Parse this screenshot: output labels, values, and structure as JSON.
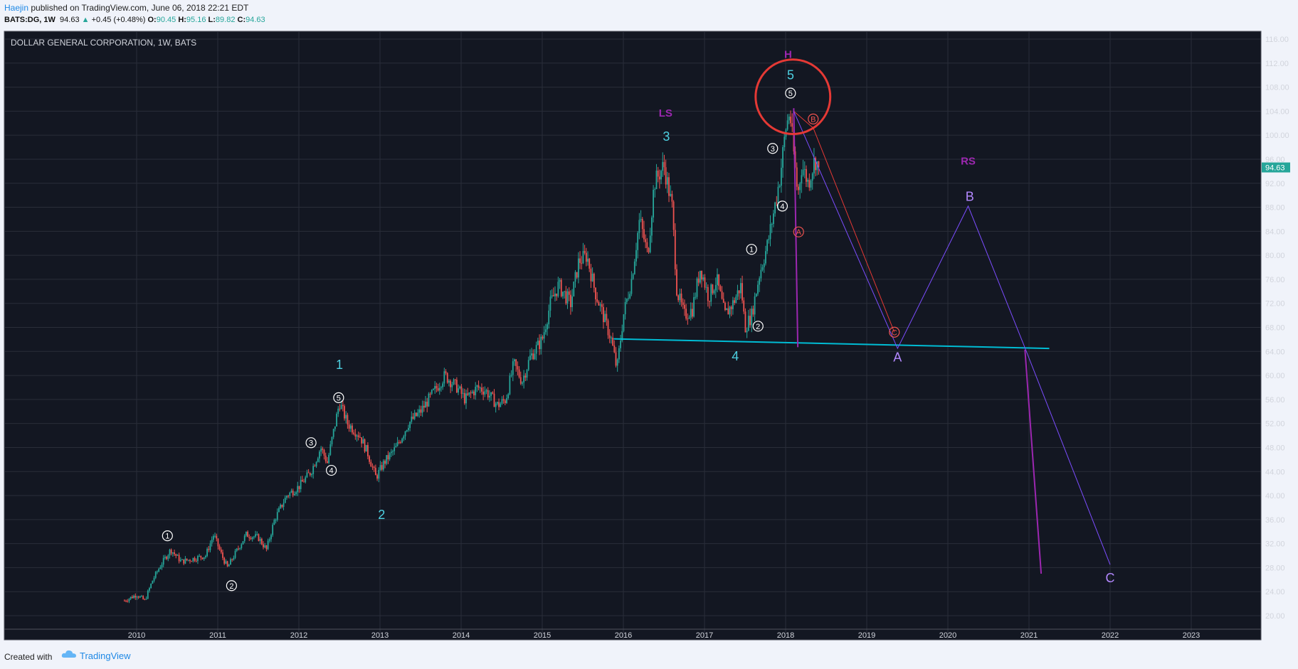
{
  "header": {
    "author": "Haejin",
    "published": " published on TradingView.com, June 06, 2018 22:21 EDT",
    "symbol": "BATS:DG, 1W",
    "last": "94.63",
    "change": "+0.45 (+0.48%)",
    "o_label": "O:",
    "o_val": "90.45",
    "h_label": "H:",
    "h_val": "95.16",
    "l_label": "L:",
    "l_val": "89.82",
    "c_label": "C:",
    "c_val": "94.63"
  },
  "footer": {
    "created": "Created with",
    "brand": "TradingView"
  },
  "colors": {
    "background": "#131722",
    "grid": "#2a2e39",
    "up": "#26a69a",
    "down": "#ef5350",
    "cyan": "#4dd0e1",
    "purple": "#9c27b0",
    "violet": "#7c4dff",
    "red": "#e53935",
    "neckline": "#00bcd4"
  },
  "chart_data": {
    "type": "candlestick",
    "title": "DOLLAR GENERAL CORPORATION, 1W, BATS",
    "ylim": [
      18,
      118
    ],
    "y_ticks": [
      "20.00",
      "24.00",
      "28.00",
      "32.00",
      "36.00",
      "40.00",
      "44.00",
      "48.00",
      "52.00",
      "56.00",
      "60.00",
      "64.00",
      "68.00",
      "72.00",
      "76.00",
      "80.00",
      "84.00",
      "88.00",
      "92.00",
      "96.00",
      "100.00",
      "104.00",
      "108.00",
      "112.00",
      "116.00"
    ],
    "x_ticks": [
      "2010",
      "2011",
      "2012",
      "2013",
      "2014",
      "2015",
      "2016",
      "2017",
      "2018",
      "2019",
      "2020",
      "2021",
      "2022",
      "2023"
    ],
    "last_price": "94.63",
    "price_path": [
      [
        2009.85,
        22.5
      ],
      [
        2010.0,
        23.5
      ],
      [
        2010.1,
        22.5
      ],
      [
        2010.2,
        26
      ],
      [
        2010.3,
        28.5
      ],
      [
        2010.42,
        31
      ],
      [
        2010.55,
        29
      ],
      [
        2010.7,
        29.5
      ],
      [
        2010.85,
        30
      ],
      [
        2010.95,
        33.5
      ],
      [
        2011.05,
        30
      ],
      [
        2011.12,
        28
      ],
      [
        2011.2,
        30
      ],
      [
        2011.35,
        33.5
      ],
      [
        2011.5,
        33
      ],
      [
        2011.6,
        31
      ],
      [
        2011.7,
        36
      ],
      [
        2011.85,
        40
      ],
      [
        2012.0,
        41.5
      ],
      [
        2012.15,
        44
      ],
      [
        2012.27,
        48
      ],
      [
        2012.35,
        45.5
      ],
      [
        2012.5,
        55.5
      ],
      [
        2012.6,
        52
      ],
      [
        2012.75,
        50
      ],
      [
        2012.85,
        47
      ],
      [
        2012.95,
        43
      ],
      [
        2013.05,
        45.5
      ],
      [
        2013.2,
        48
      ],
      [
        2013.35,
        52
      ],
      [
        2013.5,
        54
      ],
      [
        2013.65,
        57
      ],
      [
        2013.8,
        60
      ],
      [
        2013.95,
        58
      ],
      [
        2014.05,
        56
      ],
      [
        2014.2,
        58
      ],
      [
        2014.3,
        57.5
      ],
      [
        2014.45,
        55
      ],
      [
        2014.55,
        56
      ],
      [
        2014.65,
        62
      ],
      [
        2014.75,
        59
      ],
      [
        2014.85,
        63
      ],
      [
        2015.0,
        66
      ],
      [
        2015.1,
        72
      ],
      [
        2015.2,
        75
      ],
      [
        2015.35,
        72
      ],
      [
        2015.45,
        79
      ],
      [
        2015.55,
        80
      ],
      [
        2015.65,
        74
      ],
      [
        2015.75,
        70
      ],
      [
        2015.85,
        66
      ],
      [
        2015.92,
        61
      ],
      [
        2016.0,
        70
      ],
      [
        2016.1,
        76
      ],
      [
        2016.2,
        86
      ],
      [
        2016.3,
        80
      ],
      [
        2016.38,
        92
      ],
      [
        2016.5,
        95
      ],
      [
        2016.6,
        88
      ],
      [
        2016.66,
        74
      ],
      [
        2016.75,
        70
      ],
      [
        2016.85,
        71
      ],
      [
        2016.95,
        78
      ],
      [
        2017.05,
        73
      ],
      [
        2017.15,
        76
      ],
      [
        2017.25,
        70
      ],
      [
        2017.35,
        72
      ],
      [
        2017.45,
        75
      ],
      [
        2017.5,
        68
      ],
      [
        2017.58,
        70
      ],
      [
        2017.68,
        77
      ],
      [
        2017.78,
        82
      ],
      [
        2017.85,
        87
      ],
      [
        2017.93,
        93
      ],
      [
        2018.0,
        101
      ],
      [
        2018.05,
        104
      ],
      [
        2018.1,
        97
      ],
      [
        2018.15,
        90
      ],
      [
        2018.2,
        95
      ],
      [
        2018.28,
        92
      ],
      [
        2018.36,
        96
      ],
      [
        2018.42,
        94.63
      ]
    ],
    "annotations": [
      {
        "text": "1",
        "kind": "circled",
        "x": 2010.38,
        "y": 33.3
      },
      {
        "text": "2",
        "kind": "circled",
        "x": 2011.17,
        "y": 25.0
      },
      {
        "text": "3",
        "kind": "circled",
        "x": 2012.15,
        "y": 48.8
      },
      {
        "text": "4",
        "kind": "circled",
        "x": 2012.4,
        "y": 44.2
      },
      {
        "text": "5",
        "kind": "circled",
        "x": 2012.49,
        "y": 56.3
      },
      {
        "text": "1",
        "kind": "cyan",
        "x": 2012.5,
        "y": 61.8
      },
      {
        "text": "2",
        "kind": "cyan",
        "x": 2013.02,
        "y": 36.8
      },
      {
        "text": "LS",
        "kind": "purple",
        "x": 2016.52,
        "y": 103.8
      },
      {
        "text": "3",
        "kind": "cyan",
        "x": 2016.53,
        "y": 99.8
      },
      {
        "text": "4",
        "kind": "cyan",
        "x": 2017.38,
        "y": 63.2
      },
      {
        "text": "1",
        "kind": "circled",
        "x": 2017.58,
        "y": 81.0
      },
      {
        "text": "2",
        "kind": "circled",
        "x": 2017.66,
        "y": 68.2
      },
      {
        "text": "3",
        "kind": "circled",
        "x": 2017.84,
        "y": 97.8
      },
      {
        "text": "4",
        "kind": "circled",
        "x": 2017.96,
        "y": 88.2
      },
      {
        "text": "5",
        "kind": "circled",
        "x": 2018.06,
        "y": 107.0
      },
      {
        "text": "H",
        "kind": "purple",
        "x": 2018.03,
        "y": 113.6
      },
      {
        "text": "5",
        "kind": "cyan",
        "x": 2018.06,
        "y": 110.0
      },
      {
        "text": "B",
        "kind": "red-circled",
        "x": 2018.34,
        "y": 102.7
      },
      {
        "text": "A",
        "kind": "red-circled",
        "x": 2018.16,
        "y": 83.9
      },
      {
        "text": "C",
        "kind": "red-circled",
        "x": 2019.34,
        "y": 67.2
      },
      {
        "text": "A",
        "kind": "violet",
        "x": 2019.38,
        "y": 63.0
      },
      {
        "text": "RS",
        "kind": "purple",
        "x": 2020.25,
        "y": 95.8
      },
      {
        "text": "B",
        "kind": "violet",
        "x": 2020.27,
        "y": 89.8
      },
      {
        "text": "C",
        "kind": "violet",
        "x": 2022.0,
        "y": 26.3
      }
    ],
    "lines": {
      "neckline": [
        [
          2015.88,
          66.1
        ],
        [
          2021.25,
          64.5
        ]
      ],
      "head_drop": [
        [
          2018.1,
          104.5
        ],
        [
          2018.15,
          64.7
        ]
      ],
      "red_wave": [
        [
          2018.1,
          104
        ],
        [
          2018.34,
          101.2
        ],
        [
          2019.34,
          67.2
        ]
      ],
      "projection": [
        [
          2018.1,
          104
        ],
        [
          2019.38,
          64.5
        ],
        [
          2020.25,
          88.2
        ],
        [
          2020.95,
          64.6
        ],
        [
          2022.0,
          28.5
        ]
      ],
      "final_drop": [
        [
          2020.95,
          64.3
        ],
        [
          2021.15,
          27
        ]
      ]
    },
    "highlight_circle": {
      "x": 2018.09,
      "y": 106.4,
      "rx_years": 0.46,
      "ry_price": 6.2
    }
  }
}
